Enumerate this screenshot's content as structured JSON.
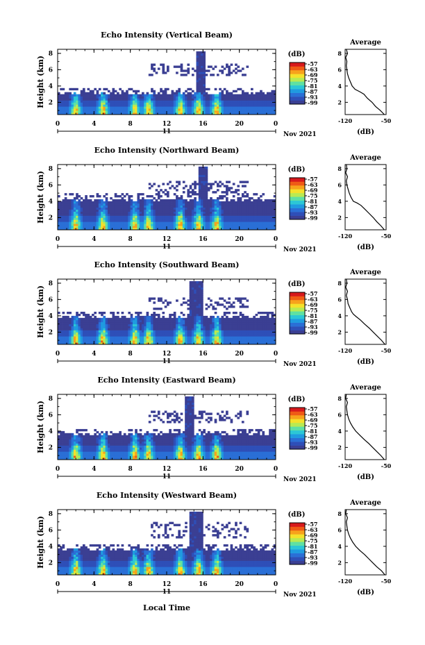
{
  "figure": {
    "xlabel": "Local Time",
    "date_label": "Nov 2021",
    "day_label": "11",
    "colorbar_unit": "(dB)",
    "colorbar_ticks": [
      "-57",
      "-63",
      "-69",
      "-75",
      "-81",
      "-87",
      "-93",
      "-99"
    ],
    "colorbar_colors": [
      "#3b3f93",
      "#2e4fb8",
      "#2a6fd6",
      "#1f9be0",
      "#2cc7d6",
      "#5fe0a3",
      "#b9ea52",
      "#f4e12b",
      "#f7a21c",
      "#ef5a16",
      "#d7191c"
    ]
  },
  "chart_data": [
    {
      "type": "heatmap",
      "title": "Echo Intensity (Vertical Beam)",
      "ylabel": "Height (km)",
      "x_ticks": [
        "0",
        "4",
        "8",
        "12",
        "16",
        "20",
        "0"
      ],
      "y_ticks": [
        "2",
        "4",
        "6",
        "8"
      ],
      "xlim": [
        0,
        24
      ],
      "ylim": [
        0.5,
        8.5
      ],
      "zlim": [
        -99,
        -57
      ],
      "echo_top_km": 3.1,
      "upper_band_km": [
        5.3,
        6.8
      ],
      "convective_bursts_hours": [
        2.0,
        5.0,
        8.5,
        10.0,
        13.5,
        15.5,
        17.5
      ],
      "column_hours": [
        15.2,
        16.2
      ],
      "profile": {
        "title": "Average",
        "xlabel": "(dB)",
        "x_ticks": [
          "-120",
          "-50"
        ],
        "y_ticks": [
          "2",
          "4",
          "6",
          "8"
        ],
        "xlim": [
          -120,
          -50
        ],
        "ylim": [
          0.5,
          8.5
        ],
        "height_km": [
          0.5,
          1.0,
          1.5,
          2.0,
          2.5,
          3.0,
          3.3,
          3.6,
          4.0,
          4.5,
          5.0,
          5.5,
          6.0,
          6.5,
          7.0,
          7.5,
          8.0,
          8.5
        ],
        "intensity_db": [
          -53,
          -60,
          -68,
          -74,
          -82,
          -88,
          -95,
          -103,
          -108,
          -111,
          -114,
          -116,
          -117,
          -118,
          -117,
          -119,
          -116,
          -118
        ]
      }
    },
    {
      "type": "heatmap",
      "title": "Echo Intensity (Northward Beam)",
      "ylabel": "Height (km)",
      "x_ticks": [
        "0",
        "4",
        "8",
        "12",
        "16",
        "20",
        "0"
      ],
      "y_ticks": [
        "2",
        "4",
        "6",
        "8"
      ],
      "xlim": [
        0,
        24
      ],
      "ylim": [
        0.5,
        8.5
      ],
      "zlim": [
        -99,
        -57
      ],
      "echo_top_km": 4.2,
      "upper_band_km": [
        5.0,
        6.5
      ],
      "convective_bursts_hours": [
        2.0,
        5.0,
        8.5,
        10.0,
        13.5,
        15.5,
        17.5
      ],
      "column_hours": [
        15.5,
        16.5
      ],
      "profile": {
        "title": "Average",
        "xlabel": "(dB)",
        "x_ticks": [
          "-120",
          "-50"
        ],
        "y_ticks": [
          "2",
          "4",
          "6",
          "8"
        ],
        "xlim": [
          -120,
          -50
        ],
        "ylim": [
          0.5,
          8.5
        ],
        "height_km": [
          0.5,
          1.0,
          1.5,
          2.0,
          2.5,
          3.0,
          3.5,
          3.8,
          4.0,
          4.5,
          5.0,
          5.5,
          6.0,
          6.5,
          7.0,
          7.5,
          8.0,
          8.5
        ],
        "intensity_db": [
          -53,
          -59,
          -66,
          -72,
          -79,
          -86,
          -93,
          -100,
          -106,
          -110,
          -113,
          -115,
          -117,
          -118,
          -116,
          -119,
          -117,
          -118
        ]
      }
    },
    {
      "type": "heatmap",
      "title": "Echo Intensity (Southward Beam)",
      "ylabel": "Height (km)",
      "x_ticks": [
        "0",
        "4",
        "8",
        "12",
        "16",
        "20",
        "0"
      ],
      "y_ticks": [
        "2",
        "4",
        "6",
        "8"
      ],
      "xlim": [
        0,
        24
      ],
      "ylim": [
        0.5,
        8.5
      ],
      "zlim": [
        -99,
        -57
      ],
      "echo_top_km": 3.9,
      "upper_band_km": [
        4.8,
        6.3
      ],
      "convective_bursts_hours": [
        2.0,
        5.0,
        8.5,
        10.0,
        13.5,
        15.5,
        17.5
      ],
      "column_hours": [
        14.5,
        16.0
      ],
      "profile": {
        "title": "Average",
        "xlabel": "(dB)",
        "x_ticks": [
          "-120",
          "-50"
        ],
        "y_ticks": [
          "2",
          "4",
          "6",
          "8"
        ],
        "xlim": [
          -120,
          -50
        ],
        "ylim": [
          0.5,
          8.5
        ],
        "height_km": [
          0.5,
          1.0,
          1.5,
          2.0,
          2.5,
          3.0,
          3.5,
          3.9,
          4.2,
          4.5,
          5.0,
          5.5,
          6.0,
          6.5,
          7.0,
          7.5,
          8.0,
          8.5
        ],
        "intensity_db": [
          -52,
          -58,
          -65,
          -72,
          -79,
          -87,
          -94,
          -101,
          -106,
          -109,
          -112,
          -115,
          -116,
          -118,
          -116,
          -119,
          -117,
          -118
        ]
      }
    },
    {
      "type": "heatmap",
      "title": "Echo Intensity (Eastward Beam)",
      "ylabel": "Height (km)",
      "x_ticks": [
        "0",
        "4",
        "8",
        "12",
        "16",
        "20",
        "0"
      ],
      "y_ticks": [
        "2",
        "4",
        "6",
        "8"
      ],
      "xlim": [
        0,
        24
      ],
      "ylim": [
        0.5,
        8.5
      ],
      "zlim": [
        -99,
        -57
      ],
      "echo_top_km": 3.6,
      "upper_band_km": [
        5.0,
        6.5
      ],
      "convective_bursts_hours": [
        2.0,
        5.0,
        8.5,
        10.0,
        13.5,
        15.5,
        17.5
      ],
      "column_hours": [
        14.0,
        15.0
      ],
      "profile": {
        "title": "Average",
        "xlabel": "(dB)",
        "x_ticks": [
          "-120",
          "-50"
        ],
        "y_ticks": [
          "2",
          "4",
          "6",
          "8"
        ],
        "xlim": [
          -120,
          -50
        ],
        "ylim": [
          0.5,
          8.5
        ],
        "height_km": [
          0.5,
          1.0,
          1.5,
          2.0,
          2.5,
          3.0,
          3.5,
          4.0,
          4.5,
          5.0,
          5.5,
          6.0,
          6.5,
          7.0,
          7.5,
          8.0,
          8.5
        ],
        "intensity_db": [
          -53,
          -59,
          -66,
          -73,
          -80,
          -88,
          -95,
          -102,
          -107,
          -111,
          -114,
          -116,
          -117,
          -118,
          -116,
          -119,
          -118
        ]
      }
    },
    {
      "type": "heatmap",
      "title": "Echo Intensity (Westward Beam)",
      "ylabel": "Height (km)",
      "x_ticks": [
        "0",
        "4",
        "8",
        "12",
        "16",
        "20",
        "0"
      ],
      "y_ticks": [
        "2",
        "4",
        "6",
        "8"
      ],
      "xlim": [
        0,
        24
      ],
      "ylim": [
        0.5,
        8.5
      ],
      "zlim": [
        -99,
        -57
      ],
      "echo_top_km": 3.6,
      "upper_band_km": [
        5.0,
        7.0
      ],
      "convective_bursts_hours": [
        2.0,
        5.0,
        8.5,
        10.0,
        13.5,
        15.5,
        17.5
      ],
      "column_hours": [
        14.5,
        16.0
      ],
      "profile": {
        "title": "Average",
        "xlabel": "(dB)",
        "x_ticks": [
          "-120",
          "-50"
        ],
        "y_ticks": [
          "2",
          "4",
          "6",
          "8"
        ],
        "xlim": [
          -120,
          -50
        ],
        "ylim": [
          0.5,
          8.5
        ],
        "height_km": [
          0.5,
          1.0,
          1.5,
          2.0,
          2.5,
          3.0,
          3.5,
          4.0,
          4.5,
          5.0,
          5.5,
          6.0,
          6.5,
          7.0,
          7.5,
          8.0,
          8.5
        ],
        "intensity_db": [
          -52,
          -58,
          -66,
          -73,
          -80,
          -87,
          -95,
          -102,
          -107,
          -111,
          -114,
          -116,
          -117,
          -118,
          -116,
          -119,
          -118
        ]
      }
    }
  ]
}
